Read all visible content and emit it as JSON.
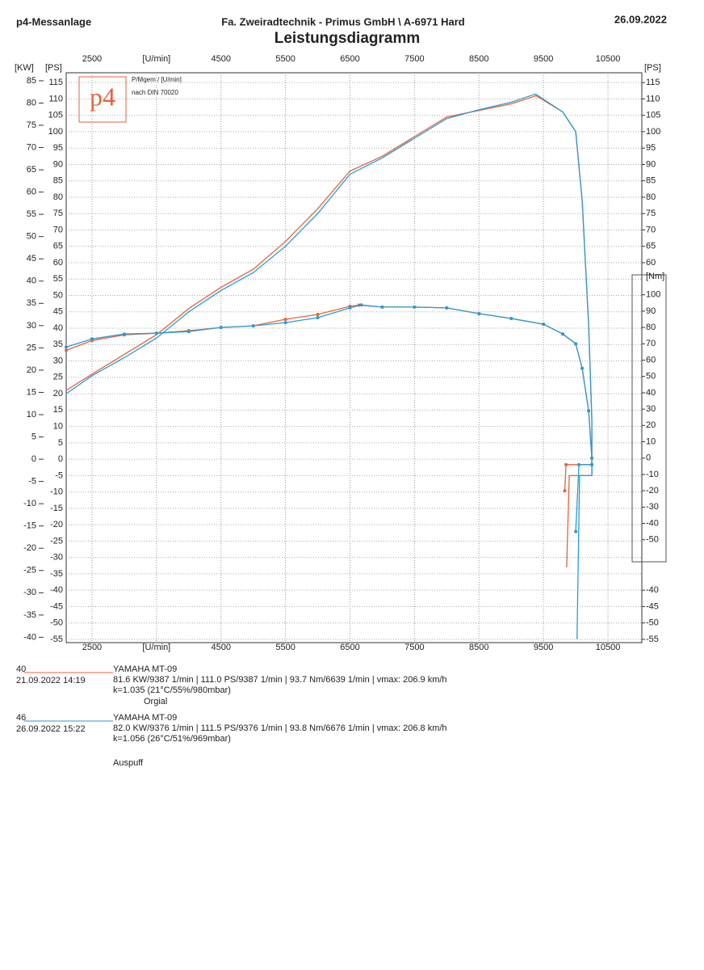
{
  "header": {
    "left": "p4-Messanlage",
    "center": "Fa. Zweiradtechnik - Primus GmbH \\ A-6971 Hard",
    "right": "26.09.2022"
  },
  "chart_data": {
    "type": "line",
    "title": "Leistungsdiagramm",
    "logo": {
      "mark": "p4",
      "line1": "P/Mgem / [U/min]",
      "line2": "nach DIN 70020"
    },
    "xlim": [
      2100,
      11025
    ],
    "xticks": [
      2500,
      {
        "value": 3500,
        "label": "[U/min]"
      },
      4500,
      5500,
      6500,
      7500,
      8500,
      9500,
      10500
    ],
    "ylim": [
      -56,
      118
    ],
    "y_label": "[PS]",
    "y_right_label": "[PS]",
    "yticks": [
      115,
      110,
      105,
      100,
      95,
      90,
      85,
      80,
      75,
      70,
      65,
      60,
      55,
      50,
      45,
      40,
      35,
      30,
      25,
      20,
      15,
      10,
      5,
      0,
      -5,
      -10,
      -15,
      -20,
      -25,
      -30,
      -35,
      -40,
      -45,
      -50,
      -55
    ],
    "y_right_ticks": [
      115,
      110,
      105,
      100,
      95,
      90,
      85,
      80,
      75,
      70,
      65,
      60,
      -40,
      -45,
      -50,
      -55
    ],
    "kw_label": "[KW]",
    "kwlim": [
      -41.2,
      86.8
    ],
    "kwticks": [
      85,
      80,
      75,
      70,
      65,
      60,
      55,
      50,
      45,
      40,
      35,
      30,
      25,
      20,
      15,
      10,
      5,
      0,
      -5,
      -10,
      -15,
      -20,
      -25,
      -30,
      -35,
      -40
    ],
    "nm_label": "[Nm]",
    "nmlim": [
      -113,
      236
    ],
    "nmticks": [
      100,
      90,
      80,
      70,
      60,
      50,
      40,
      30,
      20,
      10,
      0,
      -10,
      -20,
      -30,
      -40,
      -50
    ],
    "grid": true,
    "series": [
      {
        "color": "#e8623a",
        "axis": "ps",
        "x": [
          2100,
          2500,
          3000,
          3500,
          4000,
          4500,
          5000,
          5500,
          6000,
          6500,
          7000,
          7500,
          8000,
          8500,
          9000,
          9387,
          9800,
          10000,
          10100,
          10200,
          10250,
          10250,
          9900,
          9860
        ],
        "values": [
          21,
          26,
          32,
          38,
          46,
          52.5,
          58,
          66.5,
          76.5,
          88,
          92.5,
          98.5,
          104.5,
          106.5,
          108.5,
          111,
          106,
          100,
          79,
          41,
          12,
          -5,
          -5,
          -33
        ]
      },
      {
        "color": "#2a9bd6",
        "axis": "ps",
        "x": [
          2100,
          2500,
          3000,
          3500,
          4000,
          4500,
          5000,
          5500,
          6000,
          6500,
          7000,
          7500,
          8000,
          8500,
          9000,
          9376,
          9800,
          10000,
          10100,
          10200,
          10250,
          10250,
          10060,
          10020
        ],
        "values": [
          20,
          25.5,
          31,
          37,
          45,
          51.5,
          57,
          65,
          75,
          87,
          92,
          98,
          104,
          106.7,
          109,
          111.5,
          106,
          100,
          79,
          41,
          12,
          -5,
          -5,
          -55
        ]
      },
      {
        "color": "#e8623a",
        "axis": "nm",
        "x": [
          2100,
          2500,
          3000,
          3500,
          4000,
          4500,
          5000,
          5500,
          6000,
          6500,
          6639,
          7000,
          7500,
          8000,
          8500,
          9000,
          9500,
          9800,
          10000,
          10100,
          10200,
          10250,
          10250,
          9850,
          9830
        ],
        "values": [
          66,
          72,
          75.5,
          76.5,
          78,
          80,
          81,
          85,
          88,
          93,
          93.7,
          92.5,
          92.5,
          92,
          88.5,
          85.5,
          82,
          76,
          70,
          55,
          29,
          0,
          -4,
          -4,
          -20
        ]
      },
      {
        "color": "#2a9bd6",
        "axis": "nm",
        "x": [
          2100,
          2500,
          3000,
          3500,
          4000,
          4500,
          5000,
          5500,
          6000,
          6500,
          6676,
          7000,
          7500,
          8000,
          8500,
          9000,
          9500,
          9800,
          10000,
          10100,
          10200,
          10250,
          10250,
          10050,
          10000
        ],
        "values": [
          68,
          73,
          76,
          76.5,
          77.5,
          80,
          81,
          83,
          86,
          92,
          93.8,
          92.5,
          92.5,
          92,
          88.5,
          85.5,
          82,
          76,
          70,
          55,
          29,
          0,
          -4,
          -4,
          -45
        ]
      }
    ]
  },
  "runs": [
    {
      "id": "40",
      "date": "21.09.2022  14:19",
      "model": "YAMAHA MT-09",
      "stats": "81.6 KW/9387 1/min  |  111.0 PS/9387 1/min  |  93.7 Nm/6639 1/min | vmax: 206.9 km/h",
      "conditions": "k=1.035 (21°C/55%/980mbar)",
      "note": "Orgial"
    },
    {
      "id": "46",
      "date": "26.09.2022  15:22",
      "model": "YAMAHA MT-09",
      "stats": "82.0 KW/9376 1/min  |  111.5 PS/9376 1/min  |  93.8 Nm/6676 1/min | vmax: 206.8 km/h",
      "conditions": "k=1.056 (26°C/51%/969mbar)",
      "note": "Auspuff"
    }
  ]
}
